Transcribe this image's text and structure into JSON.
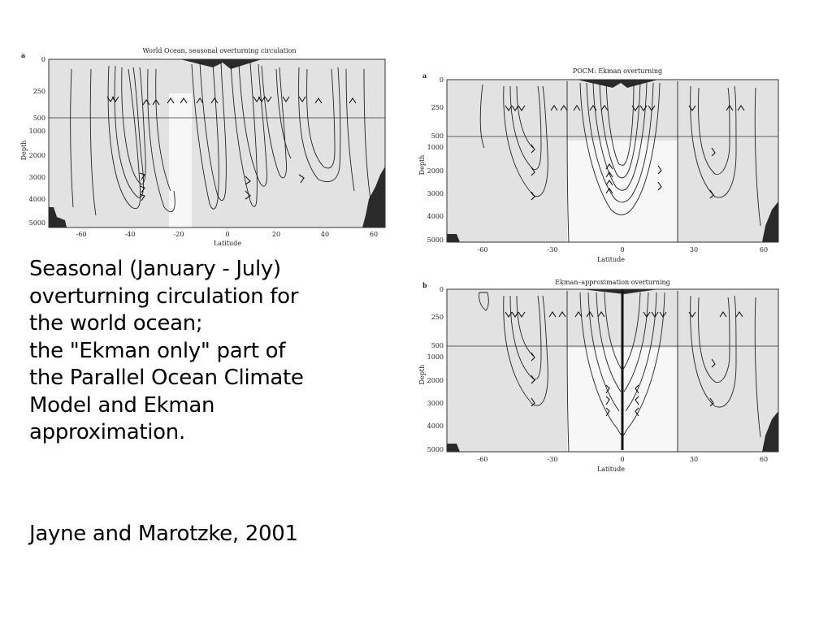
{
  "figure_left": {
    "panel_label": "a",
    "title": "World Ocean, seasonal overturning circulation",
    "ylabel": "Depth",
    "xlabel": "Latitude",
    "yticks": [
      "0",
      "250",
      "500",
      "1000",
      "2000",
      "3000",
      "4000",
      "5000"
    ],
    "xticks": [
      "-60",
      "-40",
      "-20",
      "0",
      "20",
      "40",
      "60"
    ]
  },
  "figure_right_top": {
    "panel_label": "a",
    "title": "POCM: Ekman overturning",
    "ylabel": "Depth",
    "xlabel": "Latitude",
    "yticks": [
      "0",
      "250",
      "500",
      "1000",
      "2000",
      "3000",
      "4000",
      "5000"
    ],
    "xticks": [
      "-60",
      "-30",
      "0",
      "30",
      "60"
    ]
  },
  "figure_right_bottom": {
    "panel_label": "b",
    "title": "Ekman–approximation overturning",
    "ylabel": "Depth",
    "xlabel": "Latitude",
    "yticks": [
      "0",
      "250",
      "500",
      "1000",
      "2000",
      "3000",
      "4000",
      "5000"
    ],
    "xticks": [
      "-60",
      "-30",
      "0",
      "30",
      "60"
    ]
  },
  "caption": {
    "line1": "Seasonal (January - July)",
    "line2": "overturning circulation for",
    "line3": "the world ocean;",
    "line4": "the \"Ekman only\" part of",
    "line5": "the Parallel Ocean Climate",
    "line6": "Model and Ekman",
    "line7": "approximation."
  },
  "citation": "Jayne and Marotzke, 2001"
}
